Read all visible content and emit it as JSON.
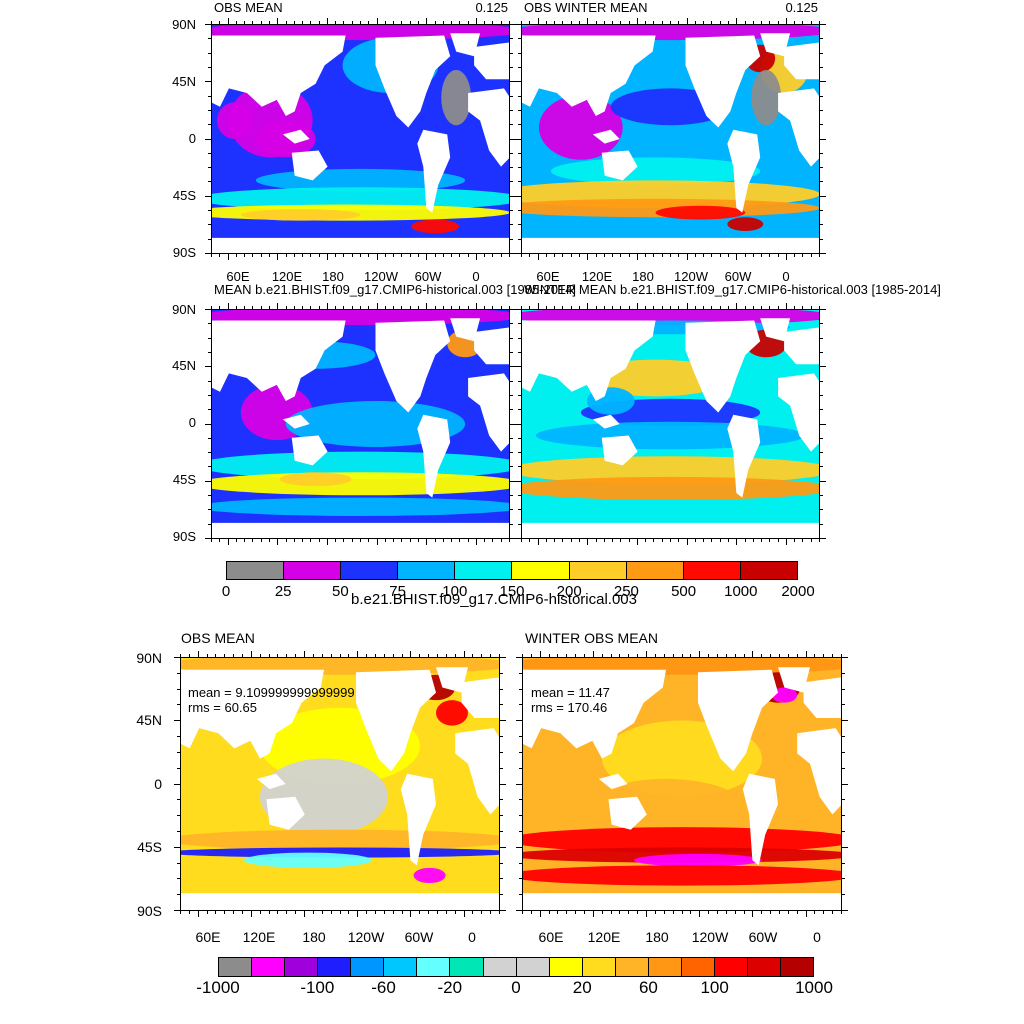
{
  "panels": [
    {
      "id": "p1",
      "title": "OBS MEAN",
      "title_right": "0.125",
      "palette": "top"
    },
    {
      "id": "p2",
      "title": "OBS WINTER MEAN",
      "title_right": "0.125",
      "palette": "top"
    },
    {
      "id": "p3",
      "title": "MEAN b.e21.BHIST.f09_g17.CMIP6-historical.003 [1985-2014]",
      "title_right": "",
      "palette": "top"
    },
    {
      "id": "p4",
      "title": "WINTER MEAN b.e21.BHIST.f09_g17.CMIP6-historical.003 [1985-2014]",
      "title_right": "",
      "palette": "top"
    },
    {
      "id": "p5",
      "title": "OBS MEAN",
      "title_right": "",
      "palette": "diff",
      "mean": "mean = 9.109999999999999",
      "rms": "rms = 60.65"
    },
    {
      "id": "p6",
      "title": "WINTER OBS MEAN",
      "title_right": "",
      "palette": "diff",
      "mean": "mean = 11.47",
      "rms": "rms = 170.46"
    }
  ],
  "lat_labels": [
    "90N",
    "45N",
    "0",
    "45S",
    "90S"
  ],
  "lon_labels": [
    "60E",
    "120E",
    "180",
    "120W",
    "60W",
    "0"
  ],
  "top_colorbar": {
    "title": "b.e21.BHIST.f09_g17.CMIP6-historical.003",
    "colors": [
      "#8c8c8c",
      "#d600e6",
      "#1e32ff",
      "#00b4ff",
      "#00f0f0",
      "#ffff00",
      "#ffcd28",
      "#ff9a14",
      "#ff0a00",
      "#c80000"
    ],
    "labels": [
      "0",
      "25",
      "50",
      "75",
      "100",
      "150",
      "200",
      "250",
      "500",
      "1000",
      "2000"
    ]
  },
  "bottom_colorbar": {
    "colors": [
      "#8c8c8c",
      "#ff00ff",
      "#a000dc",
      "#1e1eff",
      "#0096ff",
      "#00c8ff",
      "#64ffff",
      "#00e6b4",
      "#d2d2d2",
      "#d2d2d2",
      "#ffff00",
      "#ffdc1e",
      "#ffb428",
      "#ff9614",
      "#ff6400",
      "#ff0000",
      "#dc0000",
      "#b40000"
    ],
    "labels": [
      "-1000",
      "-100",
      "-60",
      "-20",
      "0",
      "20",
      "60",
      "100",
      "1000"
    ]
  },
  "land_color": "#ffffff",
  "missing_color": "#8c8c8c"
}
